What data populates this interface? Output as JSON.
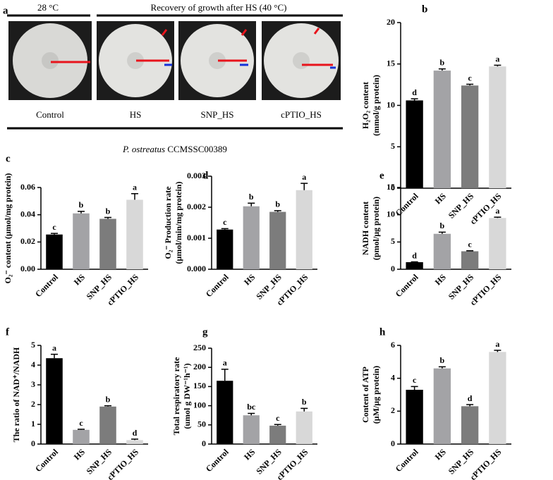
{
  "panel_a": {
    "panel": "a",
    "temp_label": "28 °C",
    "recovery_label": "Recovery of growth after HS (40 °C)",
    "labels": [
      "Control",
      "HS",
      "SNP_HS",
      "cPTIO_HS"
    ],
    "species_italic": "P. ostreatus",
    "strain": "CCMSSC00389"
  },
  "chart_data": [
    {
      "type": "bar",
      "panel": "b",
      "ylabel": [
        "H₂O₂ content",
        "(mmol/g protein)"
      ],
      "categories": [
        "Control",
        "HS",
        "SNP_HS",
        "cPTIO_HS"
      ],
      "values": [
        10.6,
        14.2,
        12.4,
        14.7
      ],
      "errors": [
        0.2,
        0.2,
        0.15,
        0.15
      ],
      "annotations": [
        "d",
        "b",
        "c",
        "a"
      ],
      "colors": [
        "#000000",
        "#a3a3a6",
        "#7c7c7c",
        "#d8d8d8"
      ],
      "ylim": [
        0,
        20
      ],
      "yticks": [
        0,
        5,
        10,
        15,
        20
      ]
    },
    {
      "type": "bar",
      "panel": "c",
      "ylabel": [
        "O₂⁻ content (μmol/mg protein)"
      ],
      "categories": [
        "Control",
        "HS",
        "SNP_HS",
        "cPTIO_HS"
      ],
      "values": [
        0.0255,
        0.041,
        0.037,
        0.051
      ],
      "errors": [
        0.0008,
        0.0015,
        0.001,
        0.0045
      ],
      "annotations": [
        "c",
        "b",
        "b",
        "a"
      ],
      "colors": [
        "#000000",
        "#a3a3a6",
        "#7c7c7c",
        "#d8d8d8"
      ],
      "ylim": [
        0,
        0.06
      ],
      "yticks": [
        {
          "value": 0,
          "label": "0.00"
        },
        {
          "value": 0.02,
          "label": "0.02"
        },
        {
          "value": 0.04,
          "label": "0.04"
        },
        {
          "value": 0.06,
          "label": "0.06"
        }
      ]
    },
    {
      "type": "bar",
      "panel": "d",
      "ylabel": [
        "O₂⁻ Production rate",
        "(μmol/min/mg protein)"
      ],
      "categories": [
        "Control",
        "HS",
        "SNP_HS",
        "cPTIO_HS"
      ],
      "values": [
        0.00128,
        0.00203,
        0.00185,
        0.00255
      ],
      "errors": [
        3e-05,
        0.0001,
        4e-05,
        0.00022
      ],
      "annotations": [
        "c",
        "b",
        "b",
        "a"
      ],
      "colors": [
        "#000000",
        "#a3a3a6",
        "#7c7c7c",
        "#d8d8d8"
      ],
      "ylim": [
        0,
        0.003
      ],
      "yticks": [
        {
          "value": 0,
          "label": "0.000"
        },
        {
          "value": 0.001,
          "label": "0.001"
        },
        {
          "value": 0.002,
          "label": "0.002"
        },
        {
          "value": 0.003,
          "label": "0.003"
        }
      ]
    },
    {
      "type": "bar",
      "panel": "e",
      "ylabel": [
        "NADH content",
        "(pmol/μg protein)"
      ],
      "categories": [
        "Control",
        "HS",
        "SNP_HS",
        "cPTIO_HS"
      ],
      "values": [
        1.3,
        6.5,
        3.3,
        9.4
      ],
      "errors": [
        0.05,
        0.3,
        0.1,
        0.15
      ],
      "annotations": [
        "d",
        "b",
        "c",
        "a"
      ],
      "colors": [
        "#000000",
        "#a3a3a6",
        "#7c7c7c",
        "#d8d8d8"
      ],
      "ylim": [
        0,
        15
      ],
      "yticks": [
        0,
        5,
        10,
        15
      ]
    },
    {
      "type": "bar",
      "panel": "f",
      "ylabel": [
        "The ratio of NAD⁺/NADH"
      ],
      "categories": [
        "Control",
        "HS",
        "SNP_HS",
        "cPTIO_HS"
      ],
      "values": [
        4.35,
        0.72,
        1.9,
        0.2
      ],
      "errors": [
        0.2,
        0.03,
        0.04,
        0.05
      ],
      "annotations": [
        "a",
        "c",
        "b",
        "d"
      ],
      "colors": [
        "#000000",
        "#a3a3a6",
        "#7c7c7c",
        "#d8d8d8"
      ],
      "ylim": [
        0,
        5
      ],
      "yticks": [
        0,
        1,
        2,
        3,
        4,
        5
      ]
    },
    {
      "type": "bar",
      "panel": "g",
      "ylabel": [
        "Total respiratory rate",
        "(umol g DW⁻¹h⁻¹)"
      ],
      "categories": [
        "Control",
        "HS",
        "SNP_HS",
        "cPTIO_HS"
      ],
      "values": [
        165,
        75,
        48,
        85
      ],
      "errors": [
        30,
        5,
        3,
        8
      ],
      "annotations": [
        "a",
        "bc",
        "c",
        "b"
      ],
      "colors": [
        "#000000",
        "#a3a3a6",
        "#7c7c7c",
        "#d8d8d8"
      ],
      "ylim": [
        0,
        250
      ],
      "yticks": [
        0,
        50,
        100,
        150,
        200,
        250
      ]
    },
    {
      "type": "bar",
      "panel": "h",
      "ylabel": [
        "Content of ATP",
        "(μM/μg protein)"
      ],
      "categories": [
        "Control",
        "HS",
        "SNP_HS",
        "cPTIO_HS"
      ],
      "values": [
        3.3,
        4.6,
        2.3,
        5.6
      ],
      "errors": [
        0.2,
        0.1,
        0.1,
        0.1
      ],
      "annotations": [
        "c",
        "b",
        "d",
        "a"
      ],
      "colors": [
        "#000000",
        "#a3a3a6",
        "#7c7c7c",
        "#d8d8d8"
      ],
      "ylim": [
        0,
        6
      ],
      "yticks": [
        0,
        2,
        4,
        6
      ]
    }
  ]
}
